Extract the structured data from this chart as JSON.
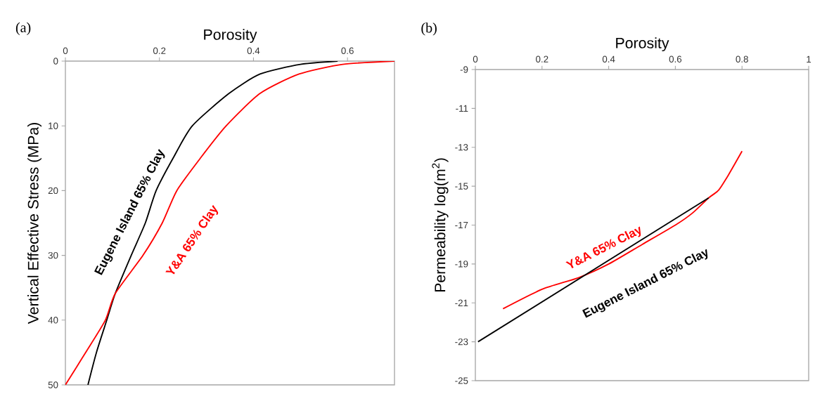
{
  "chart_data": [
    {
      "type": "line",
      "xlabel": "Porosity",
      "ylabel": "Vertical Effective Stress (MPa)",
      "annotations": [
        "(a)"
      ],
      "xlim": [
        0,
        0.7
      ],
      "ylim": [
        50,
        0
      ],
      "xticks": [
        0,
        0.2,
        0.4,
        0.6
      ],
      "yticks": [
        0,
        10,
        20,
        30,
        40,
        50
      ],
      "grid": false,
      "legend": false,
      "series": [
        {
          "name": "Eugene Island 65% Clay",
          "color": "#000000",
          "x": [
            0.048,
            0.066,
            0.088,
            0.106,
            0.14,
            0.17,
            0.193,
            0.229,
            0.27,
            0.348,
            0.414,
            0.5,
            0.579
          ],
          "values": [
            50,
            45,
            40,
            35.9,
            30,
            25,
            20,
            15,
            10,
            5,
            2,
            0.5,
            0
          ]
        },
        {
          "name": "Y&A  65% Clay",
          "color": "#ff0000",
          "x": [
            0,
            0.043,
            0.085,
            0.106,
            0.165,
            0.206,
            0.237,
            0.287,
            0.342,
            0.414,
            0.497,
            0.59,
            0.7
          ],
          "values": [
            50,
            45,
            40,
            35.9,
            30,
            25,
            20,
            15,
            10,
            5,
            2,
            0.5,
            0
          ]
        }
      ]
    },
    {
      "type": "line",
      "xlabel": "Porosity",
      "ylabel": "Permeability  log(m$^{2}$)",
      "annotations": [
        "(b)"
      ],
      "xlim": [
        0,
        1
      ],
      "ylim": [
        -25,
        -9
      ],
      "xticks": [
        0,
        0.2,
        0.4,
        0.6,
        0.8,
        1
      ],
      "yticks": [
        -25,
        -23,
        -21,
        -19,
        -17,
        -15,
        -13,
        -11,
        -9
      ],
      "grid": false,
      "legend": false,
      "series": [
        {
          "name": "Y&A  65% Clay",
          "color": "#ff0000",
          "x": [
            0.083,
            0.2,
            0.31,
            0.4,
            0.5,
            0.6,
            0.65,
            0.7,
            0.73,
            0.76,
            0.8
          ],
          "values": [
            -21.3,
            -20.3,
            -19.7,
            -19.0,
            -18.0,
            -17.0,
            -16.4,
            -15.6,
            -15.2,
            -14.4,
            -13.2
          ]
        },
        {
          "name": "Eugene Island 65% Clay",
          "color": "#000000",
          "x": [
            0.008,
            0.7
          ],
          "values": [
            -23,
            -15.6
          ]
        }
      ]
    }
  ]
}
